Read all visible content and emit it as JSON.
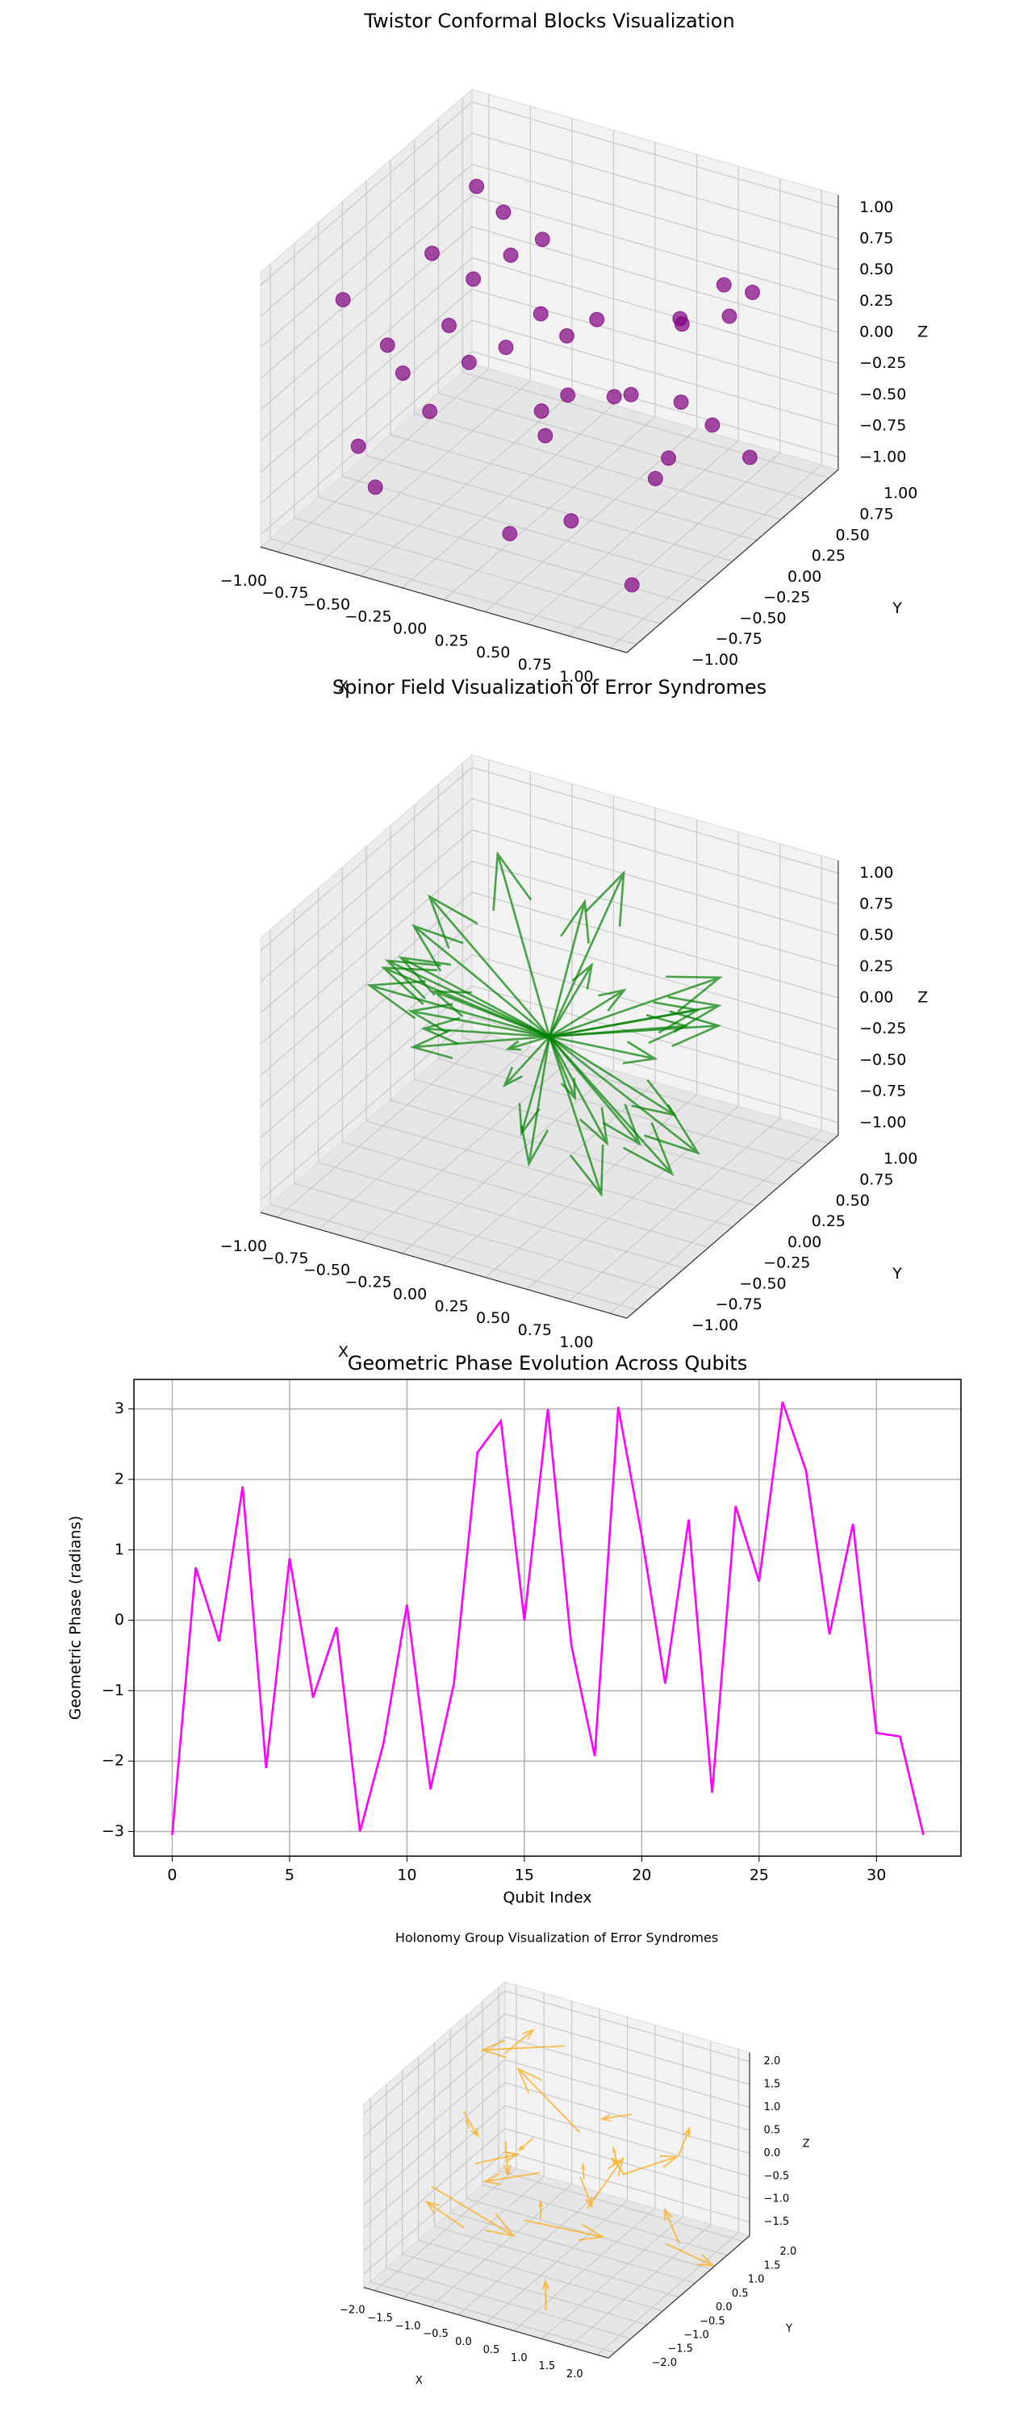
{
  "chart_data": [
    {
      "type": "scatter3d",
      "title": "Twistor Conformal Blocks Visualization",
      "xlabel": "X",
      "ylabel": "Y",
      "zlabel": "Z",
      "color": "purple",
      "x": [
        -0.9,
        -0.7,
        -0.45,
        -0.2,
        0.1,
        0.4,
        0.7,
        0.9,
        -0.8,
        -0.3,
        0.2,
        0.6,
        0.85,
        -0.6,
        -0.1,
        0.3,
        0.75,
        -0.95,
        -0.4,
        0.05,
        0.5,
        0.95,
        -0.75,
        -0.15,
        0.35,
        0.8,
        -0.55,
        0.15,
        0.65,
        -0.85,
        -0.25,
        0.45,
        0.9,
        -0.05,
        0.55,
        -0.65
      ],
      "y": [
        0.8,
        -0.6,
        0.3,
        -0.9,
        0.5,
        -0.2,
        0.9,
        -0.7,
        -0.3,
        0.7,
        -0.8,
        0.2,
        0.4,
        -0.95,
        0.1,
        0.85,
        -0.45,
        0.6,
        -0.1,
        -0.5,
        0.95,
        0.05,
        -0.85,
        0.45,
        -0.65,
        0.7,
        0.55,
        -0.35,
        -0.9,
        0.25,
        0.35,
        0.6,
        -0.2,
        -0.75,
        0.15,
        -0.4
      ],
      "z": [
        0.6,
        -0.8,
        0.9,
        0.2,
        -0.5,
        0.7,
        0.3,
        -0.9,
        0.1,
        -0.3,
        0.8,
        -0.6,
        0.5,
        -0.2,
        0.95,
        -0.7,
        0.4,
        -0.4,
        0.65,
        -0.95,
        0.25,
        -0.1,
        0.85,
        -0.55,
        0.05,
        -0.85,
        0.35,
        0.75,
        -0.35,
        0.45,
        -0.65,
        0.15,
        0.9,
        0.55,
        -0.75,
        0.0
      ],
      "xlim": [
        -1.1,
        1.1
      ],
      "ylim": [
        -1.1,
        1.1
      ],
      "zlim": [
        -1.1,
        1.1
      ],
      "xticks": [
        {
          "value": -1,
          "label": "−1.00"
        },
        {
          "value": -0.75,
          "label": "−0.75"
        },
        {
          "value": -0.5,
          "label": "−0.50"
        },
        {
          "value": -0.25,
          "label": "−0.25"
        },
        {
          "value": 0,
          "label": "0.00"
        },
        {
          "value": 0.25,
          "label": "0.25"
        },
        {
          "value": 0.5,
          "label": "0.50"
        },
        {
          "value": 0.75,
          "label": "0.75"
        },
        {
          "value": 1,
          "label": "1.00"
        }
      ],
      "yticks": [
        {
          "value": -1,
          "label": "−1.00"
        },
        {
          "value": -0.75,
          "label": "−0.75"
        },
        {
          "value": -0.5,
          "label": "−0.50"
        },
        {
          "value": -0.25,
          "label": "−0.25"
        },
        {
          "value": 0,
          "label": "0.00"
        },
        {
          "value": 0.25,
          "label": "0.25"
        },
        {
          "value": 0.5,
          "label": "0.50"
        },
        {
          "value": 0.75,
          "label": "0.75"
        },
        {
          "value": 1,
          "label": "1.00"
        }
      ],
      "zticks": [
        {
          "value": -1,
          "label": "−1.00"
        },
        {
          "value": -0.75,
          "label": "−0.75"
        },
        {
          "value": -0.5,
          "label": "−0.50"
        },
        {
          "value": -0.25,
          "label": "−0.25"
        },
        {
          "value": 0,
          "label": "0.00"
        },
        {
          "value": 0.25,
          "label": "0.25"
        },
        {
          "value": 0.5,
          "label": "0.50"
        },
        {
          "value": 0.75,
          "label": "0.75"
        },
        {
          "value": 1,
          "label": "1.00"
        }
      ]
    },
    {
      "type": "quiver3d",
      "title": "Spinor Field Visualization of Error Syndromes",
      "xlabel": "X",
      "ylabel": "Y",
      "zlabel": "Z",
      "color": "green",
      "x": [
        0,
        0,
        0,
        0,
        0,
        0,
        0,
        0,
        0,
        0,
        0,
        0,
        0,
        0,
        0,
        0,
        0,
        0,
        0,
        0,
        0,
        0,
        0,
        0,
        0,
        0,
        0,
        0,
        0,
        0,
        0,
        0
      ],
      "y": [
        0,
        0,
        0,
        0,
        0,
        0,
        0,
        0,
        0,
        0,
        0,
        0,
        0,
        0,
        0,
        0,
        0,
        0,
        0,
        0,
        0,
        0,
        0,
        0,
        0,
        0,
        0,
        0,
        0,
        0,
        0,
        0
      ],
      "z": [
        0,
        0,
        0,
        0,
        0,
        0,
        0,
        0,
        0,
        0,
        0,
        0,
        0,
        0,
        0,
        0,
        0,
        0,
        0,
        0,
        0,
        0,
        0,
        0,
        0,
        0,
        0,
        0,
        0,
        0,
        0,
        0
      ],
      "u": [
        0.9,
        -0.8,
        0.3,
        -0.2,
        0.6,
        -0.95,
        0.1,
        0.75,
        -0.5,
        0.85,
        -0.3,
        0.2,
        -0.7,
        0.5,
        -0.1,
        0.95,
        -0.6,
        0.4,
        -0.85,
        0.65,
        -0.4,
        0.05,
        0.7,
        -0.9,
        0.3,
        -0.15,
        0.8,
        -0.65,
        0.55,
        -0.25,
        0.15,
        -0.75
      ],
      "v": [
        0.2,
        -0.3,
        0.9,
        -0.85,
        -0.5,
        0.1,
        0.6,
        -0.7,
        0.4,
        0.3,
        -0.9,
        0.75,
        -0.2,
        -0.6,
        0.95,
        -0.1,
        0.5,
        0.85,
        -0.4,
        0.15,
        -0.75,
        -0.3,
        0.55,
        0.25,
        -0.95,
        0.7,
        -0.45,
        -0.6,
        0.35,
        0.8,
        -0.55,
        0.05
      ],
      "w": [
        0.3,
        0.5,
        -0.4,
        0.85,
        -0.7,
        0.2,
        0.95,
        -0.1,
        -0.85,
        0.6,
        0.4,
        -0.6,
        0.75,
        0.1,
        -0.3,
        -0.5,
        0.9,
        -0.2,
        0.35,
        -0.95,
        0.55,
        -0.8,
        0.15,
        -0.45,
        0.65,
        0.05,
        -0.25,
        0.7,
        -0.65,
        0.45,
        -0.35,
        0.8
      ],
      "xlim": [
        -1.1,
        1.1
      ],
      "ylim": [
        -1.1,
        1.1
      ],
      "zlim": [
        -1.1,
        1.1
      ],
      "xticks": [
        {
          "value": -1,
          "label": "−1.00"
        },
        {
          "value": -0.75,
          "label": "−0.75"
        },
        {
          "value": -0.5,
          "label": "−0.50"
        },
        {
          "value": -0.25,
          "label": "−0.25"
        },
        {
          "value": 0,
          "label": "0.00"
        },
        {
          "value": 0.25,
          "label": "0.25"
        },
        {
          "value": 0.5,
          "label": "0.50"
        },
        {
          "value": 0.75,
          "label": "0.75"
        },
        {
          "value": 1,
          "label": "1.00"
        }
      ],
      "yticks": [
        {
          "value": -1,
          "label": "−1.00"
        },
        {
          "value": -0.75,
          "label": "−0.75"
        },
        {
          "value": -0.5,
          "label": "−0.50"
        },
        {
          "value": -0.25,
          "label": "−0.25"
        },
        {
          "value": 0,
          "label": "0.00"
        },
        {
          "value": 0.25,
          "label": "0.25"
        },
        {
          "value": 0.5,
          "label": "0.50"
        },
        {
          "value": 0.75,
          "label": "0.75"
        },
        {
          "value": 1,
          "label": "1.00"
        }
      ],
      "zticks": [
        {
          "value": -1,
          "label": "−1.00"
        },
        {
          "value": -0.75,
          "label": "−0.75"
        },
        {
          "value": -0.5,
          "label": "−0.50"
        },
        {
          "value": -0.25,
          "label": "−0.25"
        },
        {
          "value": 0,
          "label": "0.00"
        },
        {
          "value": 0.25,
          "label": "0.25"
        },
        {
          "value": 0.5,
          "label": "0.50"
        },
        {
          "value": 0.75,
          "label": "0.75"
        },
        {
          "value": 1,
          "label": "1.00"
        }
      ]
    },
    {
      "type": "line",
      "title": "Geometric Phase Evolution Across Qubits",
      "xlabel": "Qubit Index",
      "ylabel": "Geometric Phase (radians)",
      "color": "#ff00ff",
      "grid": true,
      "x": [
        0,
        1,
        2,
        3,
        4,
        5,
        6,
        7,
        8,
        9,
        10,
        11,
        12,
        13,
        14,
        15,
        16,
        17,
        18,
        19,
        20,
        21,
        22,
        23,
        24,
        25,
        26,
        27,
        28,
        29,
        30,
        31,
        32
      ],
      "values": [
        -3.05,
        0.75,
        -0.3,
        1.9,
        -2.1,
        0.88,
        -1.1,
        -0.1,
        -3.0,
        -1.75,
        0.22,
        -2.4,
        -0.9,
        2.38,
        2.83,
        0.0,
        3.0,
        -0.35,
        -1.93,
        3.03,
        1.2,
        -0.9,
        1.43,
        -2.45,
        1.62,
        0.55,
        3.1,
        2.12,
        -0.2,
        1.37,
        -1.6,
        -1.65,
        -3.05
      ],
      "xlim": [
        -1.63,
        33.6
      ],
      "ylim": [
        -3.35,
        3.42
      ],
      "xticks": [
        0,
        5,
        10,
        15,
        20,
        25,
        30
      ],
      "yticks": [
        {
          "value": -3,
          "label": "−3"
        },
        {
          "value": -2,
          "label": "−2"
        },
        {
          "value": -1,
          "label": "−1"
        },
        0,
        1,
        2,
        3
      ]
    },
    {
      "type": "quiver3d",
      "title": "Holonomy Group Visualization of Error Syndromes",
      "xlabel": "X",
      "ylabel": "Y",
      "zlabel": "Z",
      "color": "orange",
      "x": [
        -1.8,
        -1.2,
        -0.6,
        0.0,
        0.6,
        1.2,
        1.8,
        -1.5,
        -0.9,
        -0.3,
        0.3,
        0.9,
        1.5,
        -1.7,
        -1.1,
        -0.5,
        0.1,
        0.7,
        1.3,
        1.9,
        -1.4,
        -0.2,
        0.4,
        1.0
      ],
      "y": [
        1.5,
        -0.8,
        0.3,
        -1.6,
        1.0,
        -0.2,
        0.7,
        -1.3,
        1.8,
        -0.5,
        0.2,
        -1.9,
        1.2,
        0.4,
        -1.0,
        1.6,
        -0.7,
        0.9,
        -1.4,
        0.1,
        -0.3,
        1.3,
        -1.2,
        0.6
      ],
      "z": [
        1.2,
        -1.0,
        0.5,
        1.8,
        -0.3,
        0.9,
        -1.2,
        0.1,
        1.5,
        -0.7,
        1.0,
        -1.4,
        0.3,
        -0.5,
        1.7,
        -1.1,
        0.6,
        -0.2,
        1.3,
        -0.8,
        0.8,
        -1.5,
        0.0,
        1.4
      ],
      "u": [
        0.8,
        -1.2,
        0.5,
        -0.3,
        1.1,
        -0.7,
        0.2,
        1.3,
        -0.9,
        0.6,
        -1.4,
        0.4,
        -0.5,
        1.0,
        -0.2,
        0.9,
        -1.1,
        0.3,
        -0.6,
        1.2,
        -0.8,
        0.7,
        -0.4,
        0.1
      ],
      "v": [
        -0.5,
        0.9,
        -1.3,
        0.6,
        -0.2,
        1.1,
        -0.8,
        0.3,
        -1.0,
        1.4,
        0.5,
        -0.7,
        1.2,
        -0.4,
        0.8,
        -1.2,
        0.2,
        -0.9,
        1.0,
        -0.6,
        1.3,
        -0.1,
        0.7,
        -1.1
      ],
      "w": [
        1.1,
        -0.4,
        0.7,
        -1.2,
        0.9,
        -0.6,
        1.3,
        -0.8,
        0.2,
        -1.0,
        0.6,
        1.2,
        -0.3,
        0.8,
        -1.1,
        0.4,
        -0.7,
        1.0,
        -0.5,
        0.3,
        -0.9,
        1.4,
        -0.2,
        0.6
      ],
      "xlim": [
        -2.2,
        2.2
      ],
      "ylim": [
        -2.2,
        2.2
      ],
      "zlim": [
        -1.8,
        2.2
      ],
      "xticks": [
        {
          "value": -2,
          "label": "−2.0"
        },
        {
          "value": -1.5,
          "label": "−1.5"
        },
        {
          "value": -1,
          "label": "−1.0"
        },
        {
          "value": -0.5,
          "label": "−0.5"
        },
        {
          "value": 0,
          "label": "0.0"
        },
        {
          "value": 0.5,
          "label": "0.5"
        },
        {
          "value": 1,
          "label": "1.0"
        },
        {
          "value": 1.5,
          "label": "1.5"
        },
        {
          "value": 2,
          "label": "2.0"
        }
      ],
      "yticks": [
        {
          "value": -2,
          "label": "−2.0"
        },
        {
          "value": -1.5,
          "label": "−1.5"
        },
        {
          "value": -1,
          "label": "−1.0"
        },
        {
          "value": -0.5,
          "label": "−0.5"
        },
        {
          "value": 0,
          "label": "0.0"
        },
        {
          "value": 0.5,
          "label": "0.5"
        },
        {
          "value": 1,
          "label": "1.0"
        },
        {
          "value": 1.5,
          "label": "1.5"
        },
        {
          "value": 2,
          "label": "2.0"
        }
      ],
      "zticks": [
        {
          "value": -1.5,
          "label": "−1.5"
        },
        {
          "value": -1,
          "label": "−1.0"
        },
        {
          "value": -0.5,
          "label": "−0.5"
        },
        {
          "value": 0,
          "label": "0.0"
        },
        {
          "value": 0.5,
          "label": "0.5"
        },
        {
          "value": 1,
          "label": "1.0"
        },
        {
          "value": 1.5,
          "label": "1.5"
        },
        {
          "value": 2,
          "label": "2.0"
        }
      ]
    }
  ]
}
